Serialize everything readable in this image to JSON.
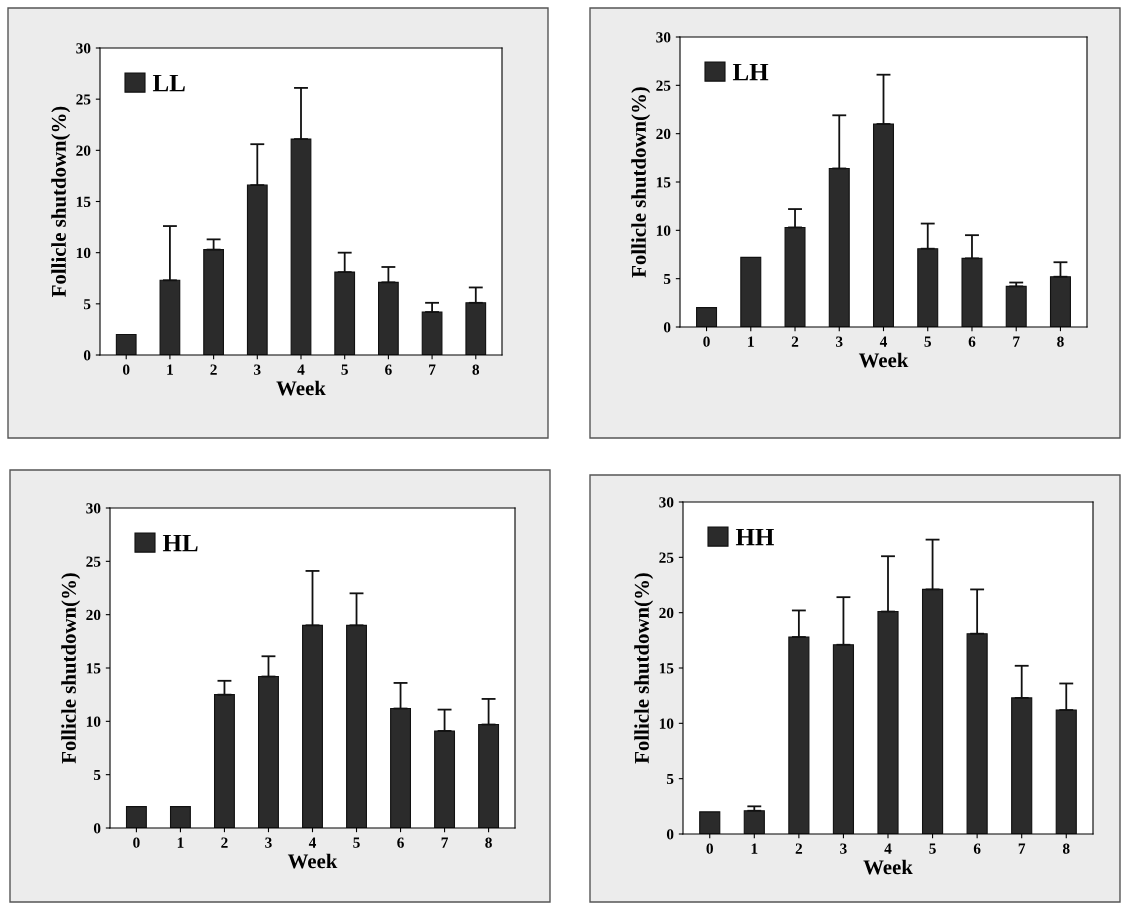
{
  "chart_data": [
    {
      "type": "bar",
      "xlabel": "Week",
      "ylabel": "Follicle shutdown(%)",
      "categories": [
        "0",
        "1",
        "2",
        "3",
        "4",
        "5",
        "6",
        "7",
        "8"
      ],
      "series": [
        {
          "name": "LL",
          "color": "#2b2b2b",
          "values": [
            2.0,
            7.3,
            10.3,
            16.6,
            21.1,
            8.1,
            7.1,
            4.2,
            5.1
          ],
          "errors": [
            null,
            [
              7.3,
              12.6
            ],
            [
              10.3,
              11.3
            ],
            [
              16.6,
              20.6
            ],
            [
              21.1,
              26.1
            ],
            [
              8.1,
              10.0
            ],
            [
              7.1,
              8.6
            ],
            [
              4.2,
              5.1
            ],
            [
              5.1,
              6.6
            ]
          ]
        }
      ],
      "ylim": [
        0,
        30
      ],
      "yticks": [
        0,
        5,
        10,
        15,
        20,
        25,
        30
      ],
      "legend": "top left",
      "grid": false
    },
    {
      "type": "bar",
      "xlabel": "Week",
      "ylabel": "Follicle shutdown(%)",
      "categories": [
        "0",
        "1",
        "2",
        "3",
        "4",
        "5",
        "6",
        "7",
        "8"
      ],
      "series": [
        {
          "name": "LH",
          "color": "#2b2b2b",
          "values": [
            2.0,
            7.2,
            10.3,
            16.4,
            21.0,
            8.1,
            7.1,
            4.2,
            5.2
          ],
          "errors": [
            null,
            null,
            [
              10.3,
              12.2
            ],
            [
              16.4,
              21.9
            ],
            [
              21.0,
              26.1
            ],
            [
              8.1,
              10.7
            ],
            [
              7.1,
              9.5
            ],
            [
              4.2,
              4.6
            ],
            [
              5.2,
              6.7
            ]
          ]
        }
      ],
      "ylim": [
        0,
        30
      ],
      "yticks": [
        0,
        5,
        10,
        15,
        20,
        25,
        30
      ],
      "legend": "top left",
      "grid": false
    },
    {
      "type": "bar",
      "xlabel": "Week",
      "ylabel": "Follicle shutdown(%)",
      "categories": [
        "0",
        "1",
        "2",
        "3",
        "4",
        "5",
        "6",
        "7",
        "8"
      ],
      "series": [
        {
          "name": "HL",
          "color": "#2b2b2b",
          "values": [
            2.0,
            2.0,
            12.5,
            14.2,
            19.0,
            19.0,
            11.2,
            9.1,
            9.7
          ],
          "errors": [
            null,
            null,
            [
              12.5,
              13.8
            ],
            [
              14.2,
              16.1
            ],
            [
              19.0,
              24.1
            ],
            [
              19.0,
              22.0
            ],
            [
              11.2,
              13.6
            ],
            [
              9.1,
              11.1
            ],
            [
              9.7,
              12.1
            ]
          ]
        }
      ],
      "ylim": [
        0,
        30
      ],
      "yticks": [
        0,
        5,
        10,
        15,
        20,
        25,
        30
      ],
      "legend": "top left",
      "grid": false
    },
    {
      "type": "bar",
      "xlabel": "Week",
      "ylabel": "Follicle shutdown(%)",
      "categories": [
        "0",
        "1",
        "2",
        "3",
        "4",
        "5",
        "6",
        "7",
        "8"
      ],
      "series": [
        {
          "name": "HH",
          "color": "#2b2b2b",
          "values": [
            2.0,
            2.1,
            17.8,
            17.1,
            20.1,
            22.1,
            18.1,
            12.3,
            11.2
          ],
          "errors": [
            null,
            [
              2.1,
              2.5
            ],
            [
              17.8,
              20.2
            ],
            [
              17.1,
              21.4
            ],
            [
              20.1,
              25.1
            ],
            [
              22.1,
              26.6
            ],
            [
              18.1,
              22.1
            ],
            [
              12.3,
              15.2
            ],
            [
              11.2,
              13.6
            ]
          ]
        }
      ],
      "ylim": [
        0,
        30
      ],
      "yticks": [
        0,
        5,
        10,
        15,
        20,
        25,
        30
      ],
      "legend": "top left",
      "grid": false
    }
  ]
}
